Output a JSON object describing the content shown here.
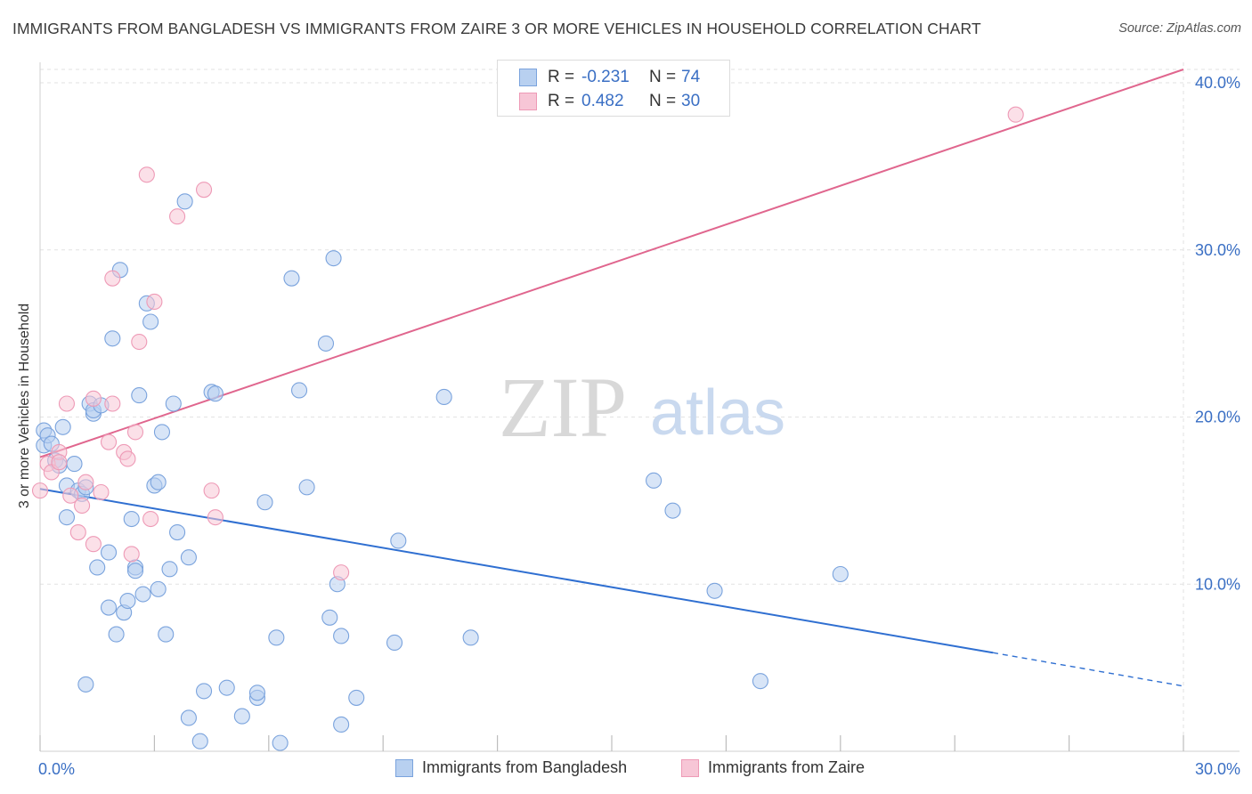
{
  "header": {
    "title": "IMMIGRANTS FROM BANGLADESH VS IMMIGRANTS FROM ZAIRE 3 OR MORE VEHICLES IN HOUSEHOLD CORRELATION CHART",
    "source": "Source: ZipAtlas.com"
  },
  "watermark": {
    "zip": "ZIP",
    "atlas": "atlas"
  },
  "legend": {
    "rows": [
      {
        "r_label": "R =",
        "r_value": "-0.231",
        "n_label": "N =",
        "n_value": "74"
      },
      {
        "r_label": "R =",
        "r_value": "0.482",
        "n_label": "N =",
        "n_value": "30"
      }
    ]
  },
  "bottom_legend": {
    "bangladesh": "Immigrants from Bangladesh",
    "zaire": "Immigrants from Zaire"
  },
  "colors": {
    "bangladesh_fill": "#b8d0f0",
    "bangladesh_stroke": "#7aa3dd",
    "bangladesh_line": "#2f6fd1",
    "zaire_fill": "#f7c6d6",
    "zaire_stroke": "#ee9ab6",
    "zaire_line": "#e0668e",
    "axis_text": "#3a6fc4",
    "grid": "#e2e2e2"
  },
  "chart_data": {
    "type": "scatter",
    "title": "IMMIGRANTS FROM BANGLADESH VS IMMIGRANTS FROM ZAIRE 3 OR MORE VEHICLES IN HOUSEHOLD CORRELATION CHART",
    "xlabel": "",
    "ylabel": "3 or more Vehicles in Household",
    "xlim": [
      0,
      30
    ],
    "ylim": [
      0,
      40.8
    ],
    "x_ticks": [
      "0.0%",
      "30.0%"
    ],
    "y_ticks": [
      "10.0%",
      "20.0%",
      "30.0%",
      "40.0%"
    ],
    "y_tick_values": [
      10,
      20,
      30,
      40
    ],
    "grid": true,
    "legend_position": "top-center",
    "series": [
      {
        "name": "Immigrants from Bangladesh",
        "r": -0.231,
        "n": 74,
        "trend": {
          "x0": 0,
          "y0": 15.7,
          "x1": 25.0,
          "y1": 5.9,
          "dashed_to_x": 30,
          "dashed_to_y": 3.9
        },
        "points": [
          [
            0.1,
            18.3
          ],
          [
            0.1,
            19.2
          ],
          [
            0.2,
            18.9
          ],
          [
            0.3,
            18.4
          ],
          [
            0.4,
            17.4
          ],
          [
            0.5,
            17.1
          ],
          [
            0.6,
            19.4
          ],
          [
            0.7,
            14.0
          ],
          [
            0.7,
            15.9
          ],
          [
            0.9,
            17.2
          ],
          [
            1.0,
            15.6
          ],
          [
            1.1,
            15.4
          ],
          [
            1.2,
            15.8
          ],
          [
            1.2,
            4.0
          ],
          [
            1.3,
            20.8
          ],
          [
            1.4,
            20.2
          ],
          [
            1.4,
            20.4
          ],
          [
            1.5,
            11.0
          ],
          [
            1.6,
            20.7
          ],
          [
            1.8,
            11.9
          ],
          [
            1.8,
            8.6
          ],
          [
            1.9,
            24.7
          ],
          [
            2.0,
            7.0
          ],
          [
            2.1,
            28.8
          ],
          [
            2.2,
            8.3
          ],
          [
            2.3,
            9.0
          ],
          [
            2.4,
            13.9
          ],
          [
            2.5,
            11.0
          ],
          [
            2.5,
            10.8
          ],
          [
            2.6,
            21.3
          ],
          [
            2.7,
            9.4
          ],
          [
            2.8,
            26.8
          ],
          [
            2.9,
            25.7
          ],
          [
            3.0,
            15.9
          ],
          [
            3.1,
            16.1
          ],
          [
            3.1,
            9.7
          ],
          [
            3.2,
            19.1
          ],
          [
            3.3,
            7.0
          ],
          [
            3.4,
            10.9
          ],
          [
            3.5,
            20.8
          ],
          [
            3.6,
            13.1
          ],
          [
            3.8,
            32.9
          ],
          [
            3.9,
            11.6
          ],
          [
            3.9,
            2.0
          ],
          [
            4.2,
            0.6
          ],
          [
            4.3,
            3.6
          ],
          [
            4.5,
            21.5
          ],
          [
            4.6,
            21.4
          ],
          [
            4.9,
            3.8
          ],
          [
            5.3,
            2.1
          ],
          [
            5.7,
            3.2
          ],
          [
            5.7,
            3.5
          ],
          [
            5.9,
            14.9
          ],
          [
            6.2,
            6.8
          ],
          [
            6.3,
            0.5
          ],
          [
            6.6,
            28.3
          ],
          [
            6.8,
            21.6
          ],
          [
            7.0,
            15.8
          ],
          [
            7.5,
            24.4
          ],
          [
            7.6,
            8.0
          ],
          [
            7.7,
            29.5
          ],
          [
            7.8,
            10.0
          ],
          [
            7.9,
            6.9
          ],
          [
            7.9,
            1.6
          ],
          [
            8.3,
            3.2
          ],
          [
            9.3,
            6.5
          ],
          [
            9.4,
            12.6
          ],
          [
            10.6,
            21.2
          ],
          [
            11.3,
            6.8
          ],
          [
            16.1,
            16.2
          ],
          [
            16.6,
            14.4
          ],
          [
            17.7,
            9.6
          ],
          [
            18.9,
            4.2
          ],
          [
            21.0,
            10.6
          ]
        ]
      },
      {
        "name": "Immigrants from Zaire",
        "r": 0.482,
        "n": 30,
        "trend": {
          "x0": 0,
          "y0": 17.6,
          "x1": 30,
          "y1": 40.8
        },
        "points": [
          [
            0.0,
            15.6
          ],
          [
            0.2,
            17.2
          ],
          [
            0.3,
            16.7
          ],
          [
            0.5,
            17.9
          ],
          [
            0.5,
            17.3
          ],
          [
            0.7,
            20.8
          ],
          [
            1.0,
            13.1
          ],
          [
            1.1,
            14.7
          ],
          [
            1.2,
            16.1
          ],
          [
            1.4,
            21.1
          ],
          [
            1.4,
            12.4
          ],
          [
            1.6,
            15.5
          ],
          [
            1.8,
            18.5
          ],
          [
            1.9,
            28.3
          ],
          [
            1.9,
            20.8
          ],
          [
            2.2,
            17.9
          ],
          [
            2.3,
            17.5
          ],
          [
            2.4,
            11.8
          ],
          [
            2.5,
            19.1
          ],
          [
            2.6,
            24.5
          ],
          [
            2.8,
            34.5
          ],
          [
            2.9,
            13.9
          ],
          [
            3.0,
            26.9
          ],
          [
            3.6,
            32.0
          ],
          [
            4.3,
            33.6
          ],
          [
            4.5,
            15.6
          ],
          [
            4.6,
            14.0
          ],
          [
            7.9,
            10.7
          ],
          [
            25.6,
            38.1
          ],
          [
            0.8,
            15.3
          ]
        ]
      }
    ]
  }
}
